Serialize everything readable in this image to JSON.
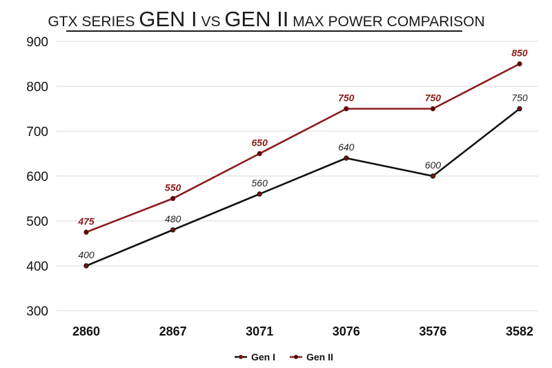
{
  "chart_data": {
    "type": "line",
    "title_parts": [
      {
        "text": "GTX SERIES ",
        "big": false
      },
      {
        "text": "GEN I",
        "big": true
      },
      {
        "text": " VS ",
        "big": false
      },
      {
        "text": "GEN II",
        "big": true
      },
      {
        "text": " MAX POWER COMPARISON",
        "big": false
      }
    ],
    "categories": [
      "2860",
      "2867",
      "3071",
      "3076",
      "3576",
      "3582"
    ],
    "series": [
      {
        "name": "Gen I",
        "values": [
          400,
          480,
          560,
          640,
          600,
          750
        ],
        "color": "#111111",
        "marker": "#7a1010"
      },
      {
        "name": "Gen II",
        "values": [
          475,
          550,
          650,
          750,
          750,
          850
        ],
        "color": "#8b1a1a",
        "marker": "#4a0a0a"
      }
    ],
    "y_ticks": [
      "900",
      "800",
      "700",
      "600",
      "500",
      "400",
      "300"
    ],
    "ylim": [
      300,
      900
    ],
    "grid": true,
    "legend_position": "bottom-center",
    "xlabel": "",
    "ylabel": ""
  }
}
